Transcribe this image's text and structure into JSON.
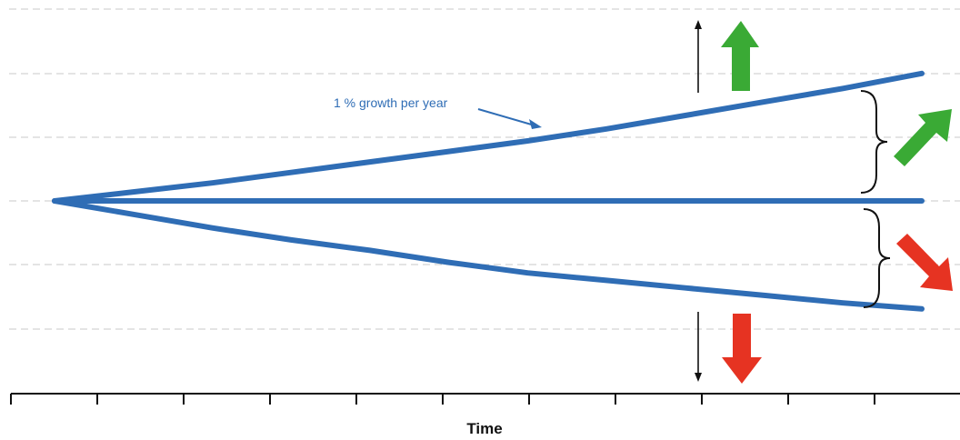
{
  "chart_data": {
    "type": "line",
    "xlabel": "Time",
    "ylabel": "",
    "series": [
      {
        "values": [
          0,
          0.6,
          1.2,
          1.9,
          2.6,
          3.3,
          4.0,
          4.8,
          5.7,
          6.6,
          7.5,
          8.5
        ]
      },
      {
        "values": [
          0,
          0,
          0,
          0,
          0,
          0,
          0,
          0,
          0,
          0,
          0,
          0
        ]
      },
      {
        "values": [
          0,
          -0.9,
          -1.8,
          -2.6,
          -3.3,
          -4.1,
          -4.8,
          -5.3,
          -5.8,
          -6.3,
          -6.8,
          -7.2
        ]
      }
    ],
    "annotation": "1 % growth per year",
    "colors": {
      "line": "#2f6db5",
      "up_arrow": "#3aaa35",
      "down_arrow": "#e63322",
      "grid": "#c8c8c8"
    },
    "grid": true
  },
  "icons": [
    "arrow-up-icon",
    "arrow-down-icon",
    "arrow-up-right-icon",
    "arrow-down-right-icon",
    "brace-icon"
  ]
}
